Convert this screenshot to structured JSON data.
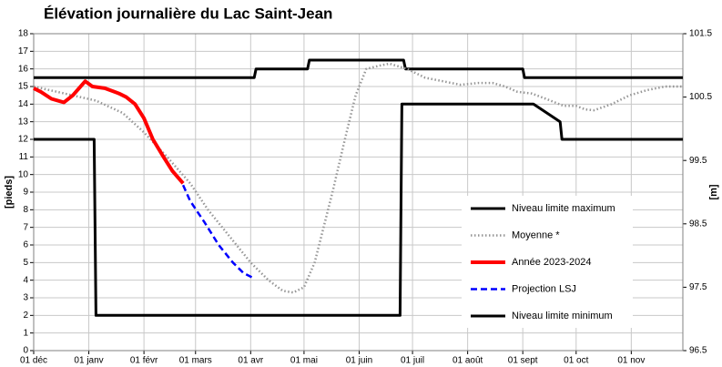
{
  "chart_data": {
    "type": "line",
    "title": "Élévation journalière du Lac Saint-Jean",
    "ylabel": "[pieds]",
    "y2label": "[m]",
    "xlim": [
      0,
      365
    ],
    "xticks": [
      {
        "value": 0,
        "label": "01 déc"
      },
      {
        "value": 31,
        "label": "01 janv"
      },
      {
        "value": 62,
        "label": "01 févr"
      },
      {
        "value": 91,
        "label": "01 mars"
      },
      {
        "value": 122,
        "label": "01 avr"
      },
      {
        "value": 152,
        "label": "01 mai"
      },
      {
        "value": 183,
        "label": "01 juin"
      },
      {
        "value": 213,
        "label": "01 juil"
      },
      {
        "value": 244,
        "label": "01 août"
      },
      {
        "value": 275,
        "label": "01 sept"
      },
      {
        "value": 305,
        "label": "01 oct"
      },
      {
        "value": 336,
        "label": "01 nov"
      }
    ],
    "ylim": [
      0,
      18
    ],
    "yticks": [
      0,
      1,
      2,
      3,
      4,
      5,
      6,
      7,
      8,
      9,
      10,
      11,
      12,
      13,
      14,
      15,
      16,
      17,
      18
    ],
    "y2lim": [
      96.5,
      101.5
    ],
    "y2ticks": [
      96.5,
      97.5,
      98.5,
      99.5,
      100.5,
      101.5
    ],
    "grid": true,
    "legend": "right",
    "series": [
      {
        "name": "Niveau limite maximum",
        "color": "#000000",
        "style": "solid",
        "x": [
          0,
          124,
          125,
          154,
          155,
          208,
          209,
          275,
          276,
          365
        ],
        "values": [
          15.5,
          15.5,
          16,
          16,
          16.5,
          16.5,
          16,
          16,
          15.5,
          15.5
        ]
      },
      {
        "name": "Moyenne *",
        "color": "#969696",
        "style": "dotted",
        "x": [
          0,
          35,
          50,
          62,
          75,
          88,
          98,
          110,
          122,
          132,
          140,
          146,
          152,
          158,
          163,
          168,
          175,
          181,
          187,
          195,
          200,
          210,
          220,
          230,
          240,
          250,
          258,
          265,
          272,
          280,
          288,
          298,
          305,
          310,
          315,
          325,
          335,
          345,
          355,
          365
        ],
        "values": [
          15,
          14.2,
          13.5,
          12.4,
          11,
          9.5,
          8,
          6.5,
          5,
          4,
          3.4,
          3.3,
          3.6,
          5,
          7,
          9,
          12,
          14.5,
          16,
          16.2,
          16.3,
          16,
          15.5,
          15.3,
          15.1,
          15.2,
          15.2,
          15,
          14.7,
          14.6,
          14.3,
          13.9,
          13.9,
          13.7,
          13.65,
          14,
          14.5,
          14.8,
          15,
          15
        ]
      },
      {
        "name": "Année 2023-2024",
        "color": "#ff0000",
        "style": "solid",
        "x": [
          0,
          4,
          10,
          17,
          22,
          29,
          33,
          40,
          48,
          52,
          57,
          62,
          67,
          73,
          78,
          84
        ],
        "values": [
          14.9,
          14.7,
          14.3,
          14.1,
          14.5,
          15.3,
          15.0,
          14.9,
          14.6,
          14.4,
          14.0,
          13.2,
          12,
          11,
          10.2,
          9.5
        ]
      },
      {
        "name": "Projection LSJ",
        "color": "#0000ff",
        "style": "dashed",
        "x": [
          84,
          88,
          96,
          104,
          112,
          118,
          124
        ],
        "values": [
          9.4,
          8.5,
          7.3,
          6,
          5,
          4.4,
          4.1
        ]
      },
      {
        "name": "Niveau limite minimum",
        "color": "#000000",
        "style": "solid",
        "x": [
          0,
          34,
          35,
          206,
          207,
          281,
          296,
          297,
          365
        ],
        "values": [
          12,
          12,
          2,
          2,
          14,
          14,
          13,
          12,
          12
        ]
      }
    ]
  }
}
